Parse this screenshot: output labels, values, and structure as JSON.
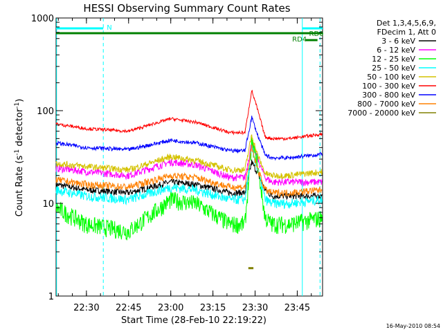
{
  "chart_data": {
    "type": "line",
    "title": "HESSI Observing Summary Count Rates",
    "xlabel": "Start Time (28-Feb-10 22:19:22)",
    "ylabel_main": "Count Rate (s",
    "ylabel_sup1": "-1",
    "ylabel_mid": " detector",
    "ylabel_sup2": "-1",
    "ylabel_end": ")",
    "y_scale": "log",
    "ylim": [
      1,
      1000
    ],
    "xlim": [
      22.32,
      23.9
    ],
    "x_ticks": [
      {
        "value": 22.5,
        "label": "22:30"
      },
      {
        "value": 22.75,
        "label": "22:45"
      },
      {
        "value": 23.0,
        "label": "23:00"
      },
      {
        "value": 23.25,
        "label": "23:15"
      },
      {
        "value": 23.5,
        "label": "23:30"
      },
      {
        "value": 23.75,
        "label": "23:45"
      }
    ],
    "y_ticks": [
      {
        "value": 1,
        "label": "1"
      },
      {
        "value": 10,
        "label": "10"
      },
      {
        "value": 100,
        "label": "100"
      },
      {
        "value": 1000,
        "label": "1000"
      }
    ],
    "legend_header": [
      "Det 1,3,4,5,6,9,",
      "FDecim 1, Att 0"
    ],
    "legend_position": "right",
    "series": [
      {
        "name": "3 - 6 keV",
        "color": "#000000",
        "x": [
          22.32,
          22.5,
          22.75,
          23.0,
          23.15,
          23.35,
          23.44,
          23.48,
          23.51,
          23.56,
          23.6,
          23.7,
          23.9
        ],
        "values": [
          16,
          14,
          13,
          17,
          16,
          13,
          13,
          28,
          22,
          14,
          12,
          12,
          12
        ]
      },
      {
        "name": "6 - 12 keV",
        "color": "#ff00ff",
        "x": [
          22.32,
          22.5,
          22.75,
          23.0,
          23.15,
          23.35,
          23.44,
          23.48,
          23.51,
          23.56,
          23.6,
          23.7,
          23.9
        ],
        "values": [
          24,
          22,
          20,
          28,
          26,
          19,
          19,
          45,
          32,
          19,
          17,
          17,
          17
        ]
      },
      {
        "name": "12 - 25 keV",
        "color": "#00ff00",
        "x": [
          22.32,
          22.5,
          22.75,
          23.0,
          23.15,
          23.35,
          23.44,
          23.48,
          23.51,
          23.56,
          23.6,
          23.7,
          23.9
        ],
        "values": [
          9,
          6,
          5,
          11,
          10,
          6,
          6,
          45,
          30,
          7,
          6,
          6,
          7
        ]
      },
      {
        "name": "25 - 50 keV",
        "color": "#00ffff",
        "x": [
          22.32,
          22.5,
          22.75,
          23.0,
          23.15,
          23.35,
          23.44,
          23.48,
          23.51,
          23.56,
          23.6,
          23.7,
          23.9
        ],
        "values": [
          14,
          12,
          11,
          15,
          14,
          11,
          11,
          40,
          25,
          11,
          10,
          10,
          11
        ]
      },
      {
        "name": "50 - 100 keV",
        "color": "#d4c200",
        "x": [
          22.32,
          22.5,
          22.75,
          23.0,
          23.15,
          23.35,
          23.44,
          23.48,
          23.51,
          23.56,
          23.6,
          23.7,
          23.9
        ],
        "values": [
          27,
          25,
          23,
          32,
          29,
          23,
          23,
          55,
          35,
          21,
          20,
          20,
          22
        ]
      },
      {
        "name": "100 - 300 keV",
        "color": "#ff0000",
        "x": [
          22.32,
          22.5,
          22.75,
          23.0,
          23.15,
          23.35,
          23.44,
          23.48,
          23.51,
          23.56,
          23.6,
          23.7,
          23.9
        ],
        "values": [
          72,
          64,
          60,
          82,
          75,
          58,
          58,
          165,
          110,
          52,
          50,
          50,
          56
        ]
      },
      {
        "name": "300 - 800 keV",
        "color": "#0000ff",
        "x": [
          22.32,
          22.5,
          22.75,
          23.0,
          23.15,
          23.35,
          23.44,
          23.48,
          23.51,
          23.56,
          23.6,
          23.7,
          23.9
        ],
        "values": [
          45,
          40,
          38,
          48,
          45,
          37,
          37,
          85,
          58,
          33,
          31,
          31,
          34
        ]
      },
      {
        "name": "800 - 7000 keV",
        "color": "#ff8000",
        "x": [
          22.32,
          22.5,
          22.75,
          23.0,
          23.15,
          23.35,
          23.44,
          23.48,
          23.51,
          23.56,
          23.6,
          23.7,
          23.9
        ],
        "values": [
          18,
          16,
          15,
          20,
          19,
          15,
          15,
          40,
          25,
          14,
          13,
          13,
          14
        ]
      },
      {
        "name": "7000 - 20000 keV",
        "color": "#808000",
        "x": [
          23.46,
          23.47,
          23.48,
          23.49
        ],
        "values": [
          2,
          2,
          2,
          2
        ]
      }
    ],
    "annotations": [
      {
        "text": "N",
        "color": "#00ffff"
      },
      {
        "text": "RD0",
        "color": "#008000"
      },
      {
        "text": "RD4",
        "color": "#008000"
      }
    ],
    "timestamp": "16-May-2010 08:54"
  }
}
